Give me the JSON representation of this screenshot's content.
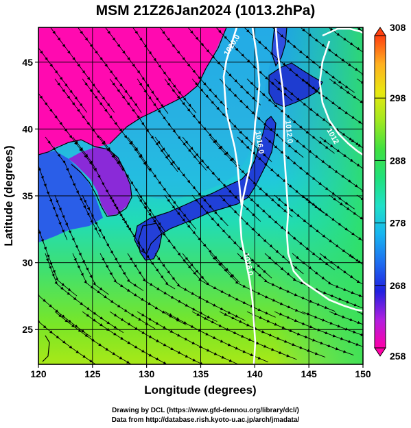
{
  "title": "MSM 21Z26Jan2024 (1013.2hPa)",
  "xlabel": "Longitude (degrees)",
  "ylabel": "Latitude  (degrees)",
  "x_ticks": [
    "120",
    "125",
    "130",
    "135",
    "140",
    "145",
    "150"
  ],
  "y_ticks": [
    "45",
    "40",
    "35",
    "30",
    "25"
  ],
  "colorbar": {
    "ticks": [
      "308",
      "298",
      "288",
      "278",
      "268",
      "258"
    ],
    "min": 258,
    "max": 308,
    "colors": [
      "#ff00a8",
      "#b020e0",
      "#2020e0",
      "#1e6ef0",
      "#18b4f0",
      "#20e0c8",
      "#20e07a",
      "#40e040",
      "#a0e820",
      "#e8e810",
      "#ffb020",
      "#ff4010"
    ]
  },
  "contour_labels": [
    "1020.0",
    "1016.0",
    "1012.0",
    "1016.0",
    "1012"
  ],
  "credits": [
    "Drawing by DCL (https://www.gfd-dennou.org/library/dcl/)",
    "Data from http://database.rish.kyoto-u.ac.jp/arch/jmadata/"
  ],
  "chart_data": {
    "type": "map",
    "xlim": [
      120,
      150
    ],
    "ylim": [
      22.4,
      47.6
    ],
    "xlabel": "Longitude (degrees)",
    "ylabel": "Latitude  (degrees)",
    "grid": true,
    "variable_range": [
      258,
      308
    ]
  }
}
